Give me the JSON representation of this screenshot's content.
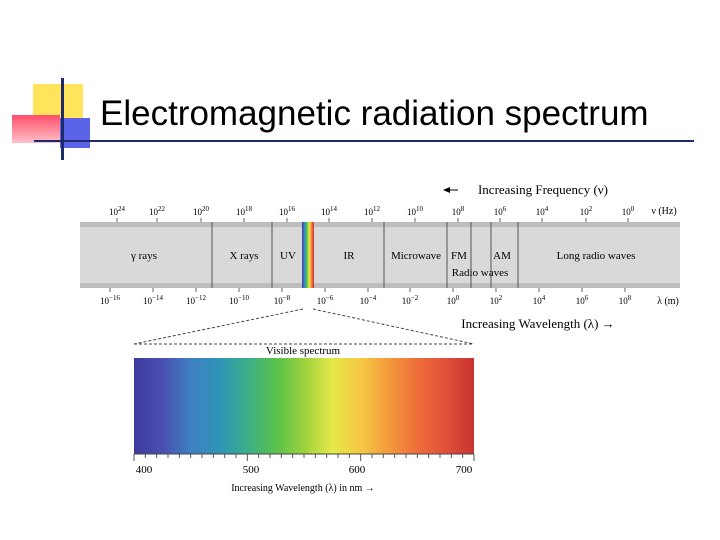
{
  "slide": {
    "title": "Electromagnetic radiation spectrum",
    "colors": {
      "deco_yellow": "#ffe45c",
      "deco_red": "#ff4f6a",
      "deco_blue": "#5b63e8",
      "band_gray": "#d9d9d9"
    }
  },
  "spectrum": {
    "frequency_header": "Increasing Frequency (ν)",
    "frequency_ticks": [
      {
        "base": "10",
        "exp": "24"
      },
      {
        "base": "10",
        "exp": "22"
      },
      {
        "base": "10",
        "exp": "20"
      },
      {
        "base": "10",
        "exp": "18"
      },
      {
        "base": "10",
        "exp": "16"
      },
      {
        "base": "10",
        "exp": "14"
      },
      {
        "base": "10",
        "exp": "12"
      },
      {
        "base": "10",
        "exp": "10"
      },
      {
        "base": "10",
        "exp": "8"
      },
      {
        "base": "10",
        "exp": "6"
      },
      {
        "base": "10",
        "exp": "4"
      },
      {
        "base": "10",
        "exp": "2"
      },
      {
        "base": "10",
        "exp": "0"
      }
    ],
    "frequency_unit": "ν (Hz)",
    "bands": [
      "γ rays",
      "X rays",
      "UV",
      "IR",
      "Microwave",
      "FM",
      "AM",
      "Long radio waves",
      "Radio waves"
    ],
    "wavelength_ticks": [
      {
        "base": "10",
        "exp": "−16"
      },
      {
        "base": "10",
        "exp": "−14"
      },
      {
        "base": "10",
        "exp": "−12"
      },
      {
        "base": "10",
        "exp": "−10"
      },
      {
        "base": "10",
        "exp": "−8"
      },
      {
        "base": "10",
        "exp": "−6"
      },
      {
        "base": "10",
        "exp": "−4"
      },
      {
        "base": "10",
        "exp": "−2"
      },
      {
        "base": "10",
        "exp": "0"
      },
      {
        "base": "10",
        "exp": "2"
      },
      {
        "base": "10",
        "exp": "4"
      },
      {
        "base": "10",
        "exp": "6"
      },
      {
        "base": "10",
        "exp": "8"
      }
    ],
    "wavelength_unit": "λ (m)",
    "wavelength_header": "Increasing Wavelength (λ) →",
    "visible": {
      "title": "Visible spectrum",
      "ticks": [
        "400",
        "500",
        "600",
        "700"
      ],
      "axis_label": "Increasing Wavelength (λ) in nm →",
      "gradient_colors": [
        "#3d3a9c",
        "#4a4fb0",
        "#3f7fc0",
        "#2f94b8",
        "#3cae8a",
        "#58c24a",
        "#9bd23e",
        "#e6e84a",
        "#f6c843",
        "#f39a3c",
        "#ee6e3a",
        "#e24f3a",
        "#c8332f"
      ]
    }
  }
}
